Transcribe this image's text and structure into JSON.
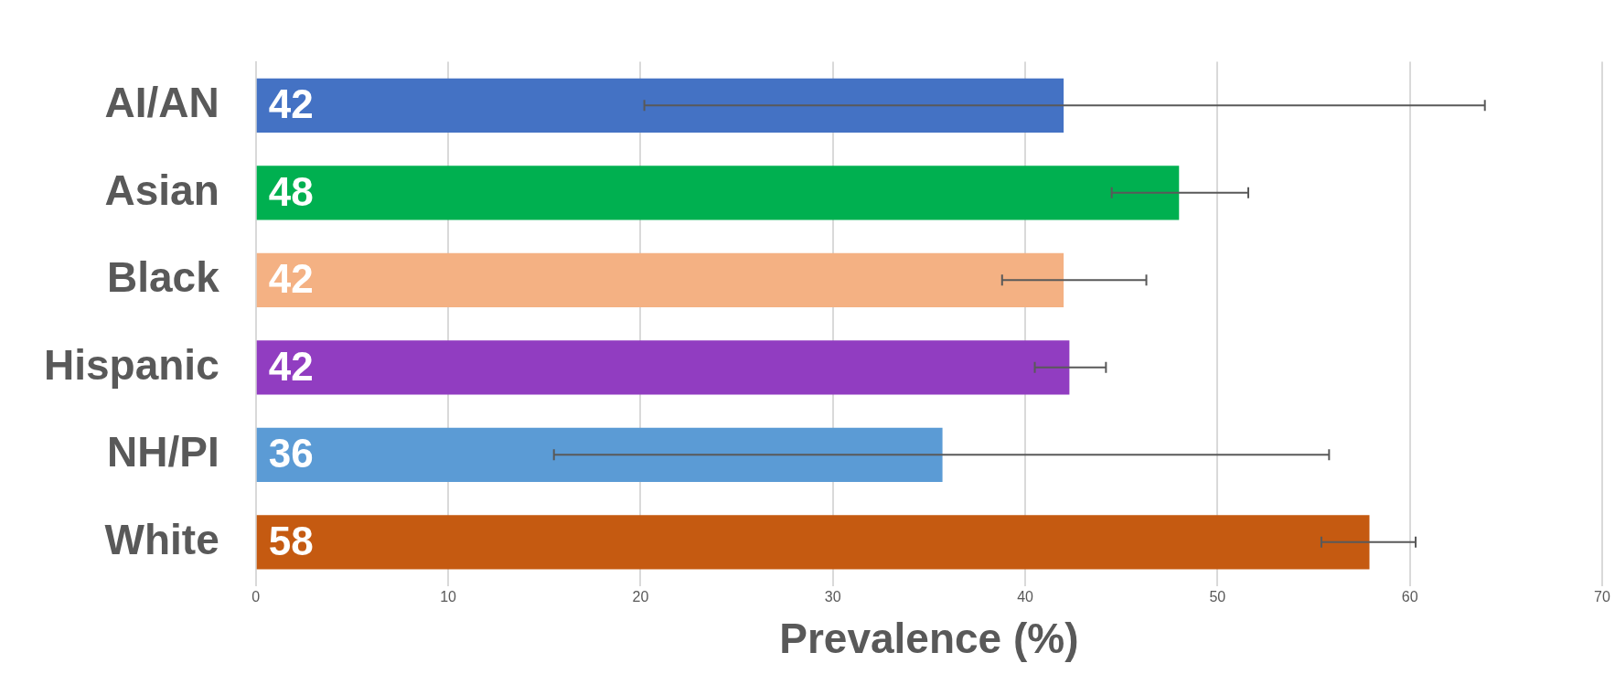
{
  "chart_data": {
    "type": "bar",
    "orientation": "horizontal",
    "categories": [
      "AI/AN",
      "Asian",
      "Black",
      "Hispanic",
      "NH/PI",
      "White"
    ],
    "values": [
      42.0,
      48.0,
      42.0,
      42.3,
      35.7,
      57.9
    ],
    "colors": [
      "#4472c4",
      "#00b050",
      "#f4b183",
      "#913dc1",
      "#5b9bd5",
      "#c55a11"
    ],
    "value_labels": [
      "42",
      "48",
      "42",
      "42",
      "36",
      "58"
    ],
    "errors": [
      [
        20.2,
        63.9
      ],
      [
        44.5,
        51.6
      ],
      [
        38.8,
        46.3
      ],
      [
        40.5,
        44.2
      ],
      [
        15.5,
        55.8
      ],
      [
        55.4,
        60.3
      ]
    ],
    "xlabel": "Prevalence (%)",
    "xlim": [
      0,
      70
    ],
    "xticks": [
      0,
      10,
      20,
      30,
      40,
      50,
      60,
      70
    ],
    "grid": "x",
    "legend": false
  }
}
